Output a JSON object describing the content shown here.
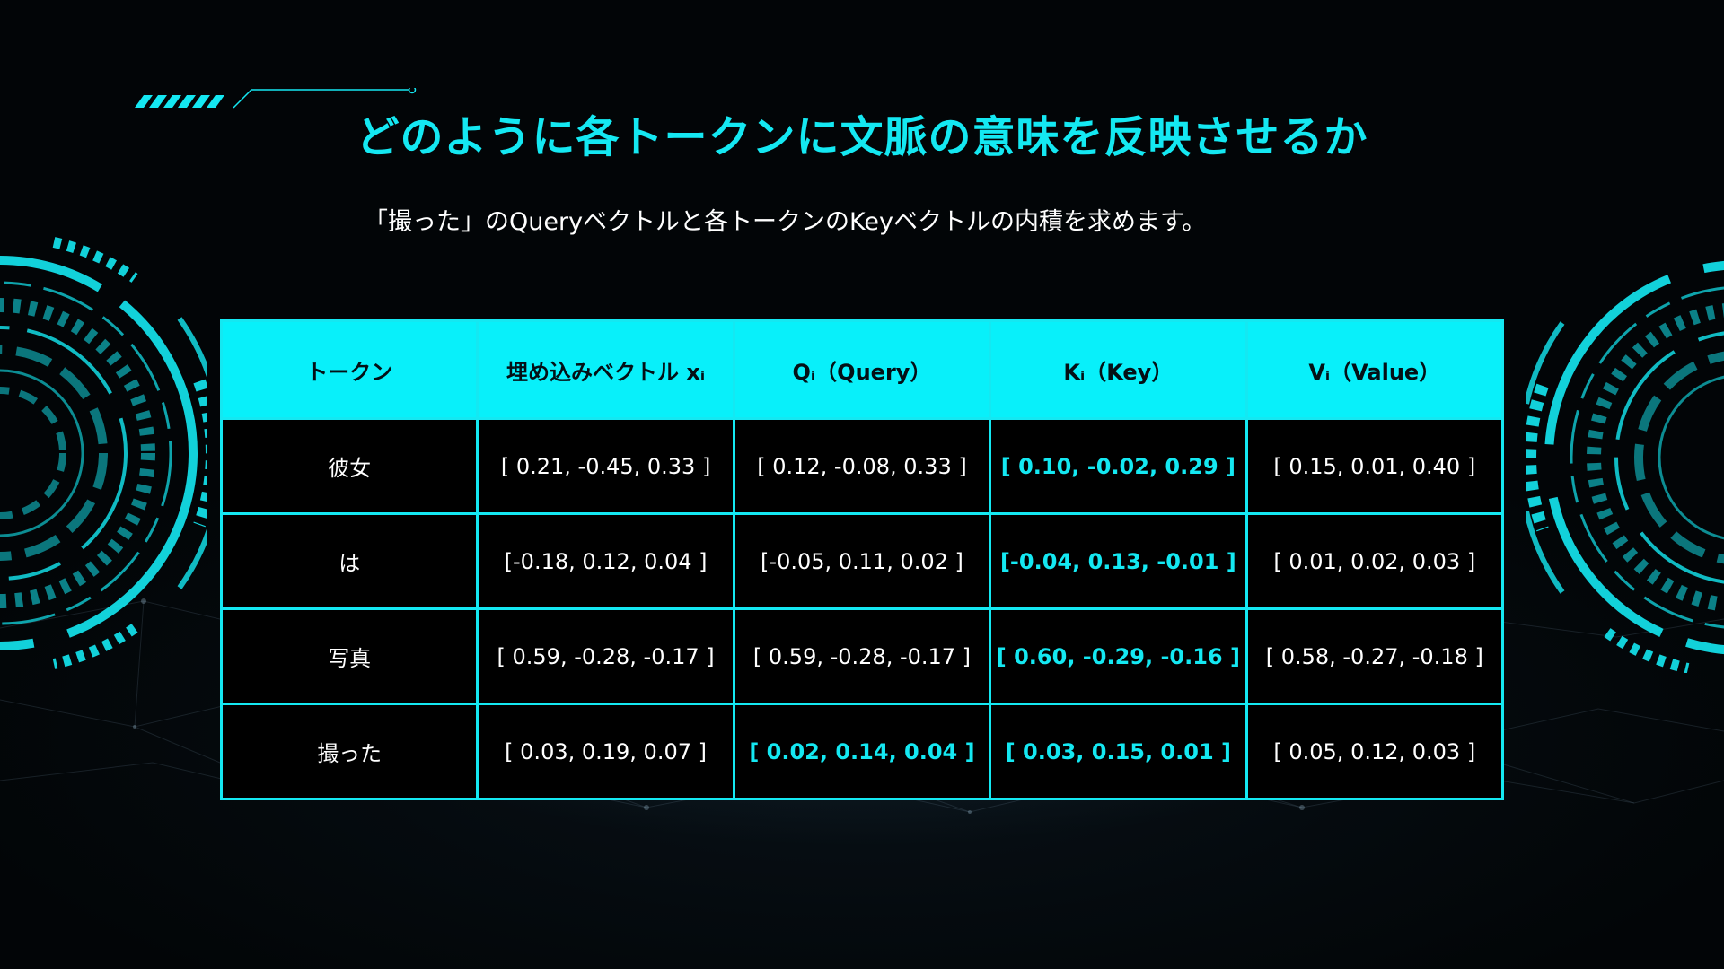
{
  "title": "どのように各トークンに文脈の意味を反映させるか",
  "subtitle": "「撮った」のQueryベクトルと各トークンのKeyベクトルの内積を求めます。",
  "colors": {
    "accent": "#14e8f2",
    "header_bg": "#08f0fa",
    "background": "#020507",
    "text": "#ffffff"
  },
  "table": {
    "headers": {
      "token": "トークン",
      "embedding": "埋め込みベクトル xᵢ",
      "query": "Qᵢ（Query）",
      "key": "Kᵢ（Key）",
      "value": "Vᵢ（Value）"
    },
    "rows": [
      {
        "token": "彼女",
        "embedding": "[ 0.21, -0.45,  0.33 ]",
        "query": "[ 0.12, -0.08,  0.33 ]",
        "key": "[ 0.10, -0.02,  0.29 ]",
        "value": "[ 0.15,  0.01,  0.40 ]"
      },
      {
        "token": "は",
        "embedding": "[-0.18,  0.12,  0.04 ]",
        "query": "[-0.05,  0.11,  0.02 ]",
        "key": "[-0.04,  0.13, -0.01 ]",
        "value": "[ 0.01,  0.02,  0.03 ]"
      },
      {
        "token": "写真",
        "embedding": "[ 0.59, -0.28, -0.17 ]",
        "query": "[ 0.59, -0.28, -0.17 ]",
        "key": "[ 0.60, -0.29, -0.16 ]",
        "value": "[ 0.58, -0.27, -0.18 ]"
      },
      {
        "token": "撮った",
        "embedding": "[ 0.03,  0.19,  0.07 ]",
        "query": "[ 0.02,  0.14,  0.04 ]",
        "key": "[ 0.03,  0.15,  0.01 ]",
        "value": "[ 0.05,  0.12,  0.03 ]"
      }
    ]
  }
}
